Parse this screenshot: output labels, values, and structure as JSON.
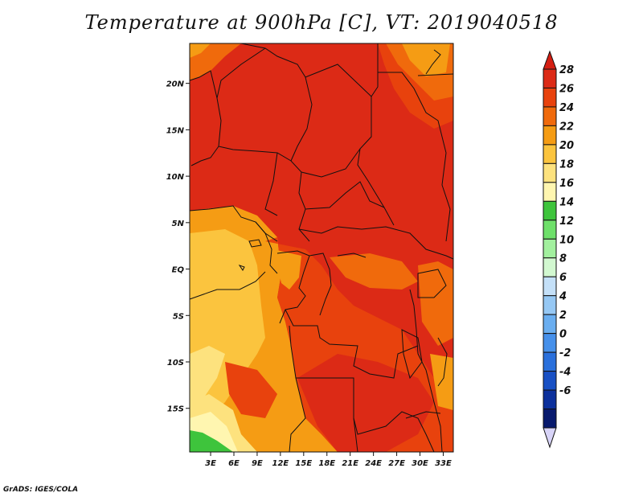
{
  "title": "Temperature at 900hPa [C], VT: 2019040518",
  "credit": "GrADS: IGES/COLA",
  "map": {
    "lat_labels": [
      {
        "label": "20N",
        "lat": 20
      },
      {
        "label": "15N",
        "lat": 15
      },
      {
        "label": "10N",
        "lat": 10
      },
      {
        "label": "5N",
        "lat": 5
      },
      {
        "label": "EQ",
        "lat": 0
      },
      {
        "label": "5S",
        "lat": -5
      },
      {
        "label": "10S",
        "lat": -10
      },
      {
        "label": "15S",
        "lat": -15
      }
    ],
    "lon_labels": [
      {
        "label": "3E",
        "lon": 3
      },
      {
        "label": "6E",
        "lon": 6
      },
      {
        "label": "9E",
        "lon": 9
      },
      {
        "label": "12E",
        "lon": 12
      },
      {
        "label": "15E",
        "lon": 15
      },
      {
        "label": "18E",
        "lon": 18
      },
      {
        "label": "21E",
        "lon": 21
      },
      {
        "label": "24E",
        "lon": 24
      },
      {
        "label": "27E",
        "lon": 27
      },
      {
        "label": "30E",
        "lon": 30
      },
      {
        "label": "33E",
        "lon": 33
      }
    ],
    "lon_range": [
      0.3,
      34.3
    ],
    "lat_range": [
      -19.7,
      24.3
    ]
  },
  "colorbar": {
    "labels": [
      "28",
      "26",
      "24",
      "22",
      "20",
      "18",
      "16",
      "14",
      "12",
      "10",
      "8",
      "6",
      "4",
      "2",
      "0",
      "-2",
      "-4",
      "-6"
    ],
    "colors": [
      "#dc2a16",
      "#e8420d",
      "#f06a0c",
      "#f59c14",
      "#fbc43e",
      "#fde27e",
      "#fff6b0",
      "#3ec43c",
      "#6ee06a",
      "#a2f09e",
      "#d2f8d0",
      "#c4e0f8",
      "#96c8f4",
      "#6aaef0",
      "#4690ea",
      "#2a70dc",
      "#1850c4",
      "#0c309c",
      "#081a6e"
    ],
    "top_arrow_color": "#d41e12",
    "bottom_arrow_color": "#d8d4f8"
  }
}
